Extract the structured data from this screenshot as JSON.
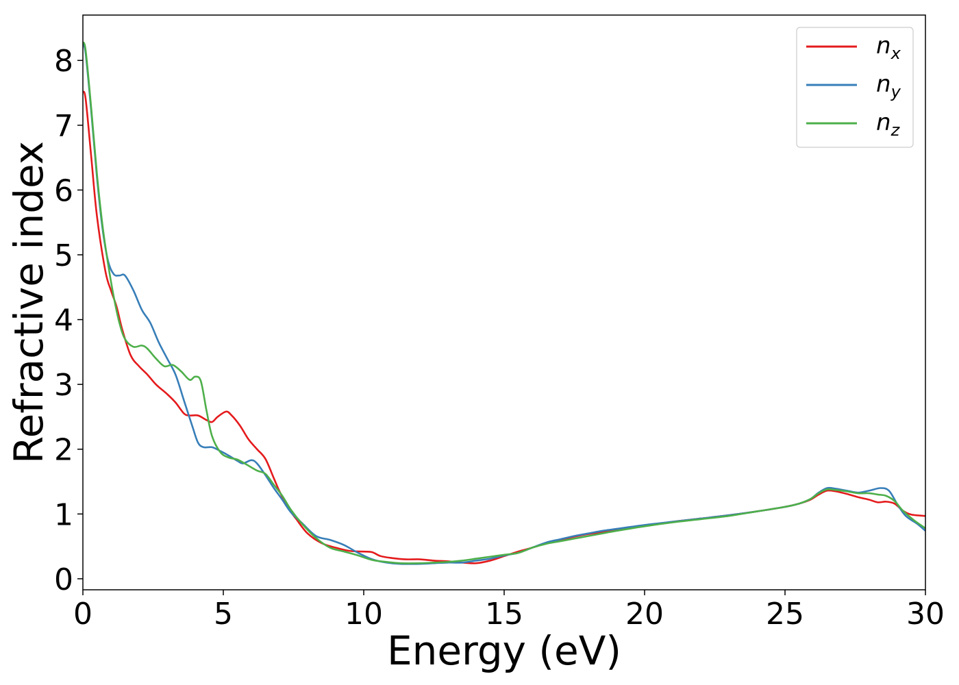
{
  "chart_data": {
    "type": "line",
    "title": "",
    "xlabel": "Energy (eV)",
    "ylabel": "Refractive index",
    "xlim": [
      0,
      30
    ],
    "ylim": [
      -0.17,
      8.7
    ],
    "xticks": [
      0,
      5,
      10,
      15,
      20,
      25,
      30
    ],
    "yticks": [
      0,
      1,
      2,
      3,
      4,
      5,
      6,
      7,
      8
    ],
    "grid": false,
    "legend_position": "top-right",
    "series": [
      {
        "name": "n",
        "subscript": "x",
        "color": "#e41a1c",
        "points": [
          [
            0,
            7.52
          ],
          [
            0.1,
            7.4
          ],
          [
            0.3,
            6.5
          ],
          [
            0.5,
            5.6
          ],
          [
            0.8,
            4.75
          ],
          [
            1.0,
            4.45
          ],
          [
            1.2,
            4.2
          ],
          [
            1.4,
            3.85
          ],
          [
            1.7,
            3.45
          ],
          [
            2.0,
            3.28
          ],
          [
            2.3,
            3.15
          ],
          [
            2.6,
            3.0
          ],
          [
            3.0,
            2.85
          ],
          [
            3.3,
            2.72
          ],
          [
            3.6,
            2.55
          ],
          [
            3.8,
            2.52
          ],
          [
            4.1,
            2.52
          ],
          [
            4.4,
            2.45
          ],
          [
            4.6,
            2.42
          ],
          [
            4.8,
            2.5
          ],
          [
            5.1,
            2.58
          ],
          [
            5.3,
            2.52
          ],
          [
            5.6,
            2.36
          ],
          [
            5.9,
            2.15
          ],
          [
            6.2,
            2.0
          ],
          [
            6.5,
            1.85
          ],
          [
            6.8,
            1.55
          ],
          [
            7.0,
            1.35
          ],
          [
            7.3,
            1.1
          ],
          [
            7.6,
            0.92
          ],
          [
            8.0,
            0.7
          ],
          [
            8.5,
            0.55
          ],
          [
            9.0,
            0.48
          ],
          [
            9.5,
            0.43
          ],
          [
            10.0,
            0.42
          ],
          [
            10.3,
            0.41
          ],
          [
            10.6,
            0.35
          ],
          [
            11.0,
            0.32
          ],
          [
            11.5,
            0.3
          ],
          [
            12.0,
            0.3
          ],
          [
            12.5,
            0.28
          ],
          [
            13.0,
            0.27
          ],
          [
            13.5,
            0.25
          ],
          [
            14.0,
            0.24
          ],
          [
            14.5,
            0.28
          ],
          [
            15.0,
            0.35
          ],
          [
            15.5,
            0.42
          ],
          [
            16.0,
            0.48
          ],
          [
            16.5,
            0.55
          ],
          [
            17.0,
            0.6
          ],
          [
            17.5,
            0.65
          ],
          [
            18.0,
            0.69
          ],
          [
            18.5,
            0.72
          ],
          [
            19.0,
            0.76
          ],
          [
            20.0,
            0.82
          ],
          [
            21.0,
            0.88
          ],
          [
            22.0,
            0.93
          ],
          [
            23.0,
            0.98
          ],
          [
            24.0,
            1.04
          ],
          [
            25.0,
            1.11
          ],
          [
            25.5,
            1.16
          ],
          [
            25.9,
            1.22
          ],
          [
            26.2,
            1.3
          ],
          [
            26.5,
            1.36
          ],
          [
            26.8,
            1.35
          ],
          [
            27.2,
            1.31
          ],
          [
            27.6,
            1.26
          ],
          [
            28.0,
            1.22
          ],
          [
            28.3,
            1.18
          ],
          [
            28.6,
            1.19
          ],
          [
            28.9,
            1.16
          ],
          [
            29.2,
            1.05
          ],
          [
            29.5,
            0.99
          ],
          [
            30.0,
            0.97
          ]
        ]
      },
      {
        "name": "n",
        "subscript": "y",
        "color": "#377eb8",
        "points": [
          [
            0,
            8.25
          ],
          [
            0.1,
            8.1
          ],
          [
            0.3,
            7.2
          ],
          [
            0.5,
            6.2
          ],
          [
            0.7,
            5.4
          ],
          [
            0.9,
            4.9
          ],
          [
            1.1,
            4.7
          ],
          [
            1.3,
            4.68
          ],
          [
            1.5,
            4.68
          ],
          [
            1.8,
            4.45
          ],
          [
            2.1,
            4.15
          ],
          [
            2.4,
            3.95
          ],
          [
            2.7,
            3.65
          ],
          [
            3.0,
            3.4
          ],
          [
            3.3,
            3.15
          ],
          [
            3.6,
            2.75
          ],
          [
            3.9,
            2.35
          ],
          [
            4.1,
            2.1
          ],
          [
            4.3,
            2.03
          ],
          [
            4.6,
            2.03
          ],
          [
            4.9,
            1.97
          ],
          [
            5.2,
            1.9
          ],
          [
            5.5,
            1.82
          ],
          [
            5.7,
            1.78
          ],
          [
            6.0,
            1.83
          ],
          [
            6.2,
            1.78
          ],
          [
            6.5,
            1.6
          ],
          [
            6.8,
            1.4
          ],
          [
            7.1,
            1.22
          ],
          [
            7.4,
            1.03
          ],
          [
            7.8,
            0.86
          ],
          [
            8.3,
            0.66
          ],
          [
            8.8,
            0.6
          ],
          [
            9.3,
            0.52
          ],
          [
            9.8,
            0.4
          ],
          [
            10.3,
            0.3
          ],
          [
            10.8,
            0.25
          ],
          [
            11.3,
            0.23
          ],
          [
            12.0,
            0.23
          ],
          [
            12.5,
            0.24
          ],
          [
            13.0,
            0.25
          ],
          [
            13.5,
            0.25
          ],
          [
            14.0,
            0.28
          ],
          [
            14.5,
            0.31
          ],
          [
            15.0,
            0.36
          ],
          [
            15.5,
            0.4
          ],
          [
            16.0,
            0.48
          ],
          [
            16.5,
            0.56
          ],
          [
            17.0,
            0.61
          ],
          [
            17.5,
            0.66
          ],
          [
            18.0,
            0.7
          ],
          [
            18.5,
            0.74
          ],
          [
            19.0,
            0.77
          ],
          [
            20.0,
            0.83
          ],
          [
            21.0,
            0.88
          ],
          [
            22.0,
            0.93
          ],
          [
            23.0,
            0.98
          ],
          [
            24.0,
            1.04
          ],
          [
            25.0,
            1.11
          ],
          [
            25.5,
            1.16
          ],
          [
            25.9,
            1.23
          ],
          [
            26.2,
            1.33
          ],
          [
            26.5,
            1.4
          ],
          [
            26.8,
            1.39
          ],
          [
            27.2,
            1.36
          ],
          [
            27.6,
            1.33
          ],
          [
            28.0,
            1.36
          ],
          [
            28.4,
            1.4
          ],
          [
            28.7,
            1.36
          ],
          [
            29.0,
            1.15
          ],
          [
            29.3,
            0.97
          ],
          [
            29.7,
            0.85
          ],
          [
            30.0,
            0.74
          ]
        ]
      },
      {
        "name": "n",
        "subscript": "z",
        "color": "#4daf4a",
        "points": [
          [
            0,
            8.28
          ],
          [
            0.1,
            8.15
          ],
          [
            0.3,
            7.25
          ],
          [
            0.5,
            6.25
          ],
          [
            0.7,
            5.45
          ],
          [
            0.9,
            4.85
          ],
          [
            1.1,
            4.35
          ],
          [
            1.3,
            3.95
          ],
          [
            1.5,
            3.7
          ],
          [
            1.8,
            3.58
          ],
          [
            2.1,
            3.6
          ],
          [
            2.3,
            3.55
          ],
          [
            2.6,
            3.4
          ],
          [
            2.9,
            3.28
          ],
          [
            3.2,
            3.3
          ],
          [
            3.5,
            3.2
          ],
          [
            3.8,
            3.07
          ],
          [
            4.0,
            3.12
          ],
          [
            4.2,
            3.05
          ],
          [
            4.4,
            2.6
          ],
          [
            4.6,
            2.2
          ],
          [
            4.9,
            1.95
          ],
          [
            5.2,
            1.87
          ],
          [
            5.5,
            1.84
          ],
          [
            5.8,
            1.77
          ],
          [
            6.2,
            1.67
          ],
          [
            6.5,
            1.62
          ],
          [
            6.8,
            1.45
          ],
          [
            7.1,
            1.28
          ],
          [
            7.4,
            1.07
          ],
          [
            7.8,
            0.85
          ],
          [
            8.3,
            0.63
          ],
          [
            8.8,
            0.48
          ],
          [
            9.3,
            0.42
          ],
          [
            9.8,
            0.36
          ],
          [
            10.3,
            0.29
          ],
          [
            10.8,
            0.26
          ],
          [
            11.3,
            0.24
          ],
          [
            12.0,
            0.24
          ],
          [
            12.5,
            0.25
          ],
          [
            13.0,
            0.26
          ],
          [
            13.5,
            0.28
          ],
          [
            14.0,
            0.31
          ],
          [
            14.5,
            0.34
          ],
          [
            15.0,
            0.37
          ],
          [
            15.5,
            0.4
          ],
          [
            16.0,
            0.48
          ],
          [
            16.5,
            0.54
          ],
          [
            17.0,
            0.58
          ],
          [
            17.5,
            0.62
          ],
          [
            18.0,
            0.66
          ],
          [
            18.5,
            0.7
          ],
          [
            19.0,
            0.74
          ],
          [
            20.0,
            0.81
          ],
          [
            21.0,
            0.87
          ],
          [
            22.0,
            0.92
          ],
          [
            23.0,
            0.97
          ],
          [
            24.0,
            1.04
          ],
          [
            25.0,
            1.11
          ],
          [
            25.5,
            1.16
          ],
          [
            25.9,
            1.23
          ],
          [
            26.2,
            1.32
          ],
          [
            26.5,
            1.38
          ],
          [
            26.8,
            1.37
          ],
          [
            27.2,
            1.35
          ],
          [
            27.6,
            1.32
          ],
          [
            28.0,
            1.32
          ],
          [
            28.3,
            1.3
          ],
          [
            28.6,
            1.28
          ],
          [
            28.9,
            1.2
          ],
          [
            29.2,
            1.05
          ],
          [
            29.6,
            0.9
          ],
          [
            30.0,
            0.78
          ]
        ]
      }
    ]
  }
}
